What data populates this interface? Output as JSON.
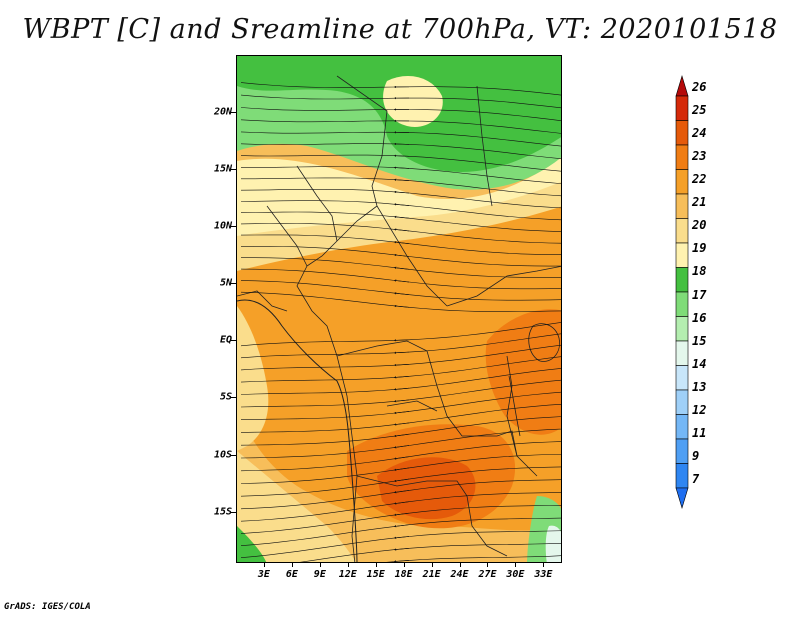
{
  "title": "WBPT [C] and Sreamline at 700hPa, VT: 2020101518",
  "credit": "GrADS: IGES/COLA",
  "map": {
    "lon_range": [
      0,
      35
    ],
    "lat_range": [
      -19.5,
      25
    ],
    "lat_ticks": [
      "20N",
      "15N",
      "10N",
      "5N",
      "EQ",
      "5S",
      "10S",
      "15S"
    ],
    "lat_values": [
      20,
      15,
      10,
      5,
      0,
      -5,
      -10,
      -15
    ],
    "lon_ticks": [
      "3E",
      "6E",
      "9E",
      "12E",
      "15E",
      "18E",
      "21E",
      "24E",
      "27E",
      "30E",
      "33E"
    ],
    "lon_values": [
      3,
      6,
      9,
      12,
      15,
      18,
      21,
      24,
      27,
      30,
      33
    ]
  },
  "colorbar": {
    "levels": [
      "7",
      "9",
      "11",
      "12",
      "13",
      "14",
      "15",
      "16",
      "17",
      "18",
      "19",
      "20",
      "21",
      "22",
      "23",
      "24",
      "25",
      "26"
    ],
    "colors": [
      "#1e6ef0",
      "#2f86f2",
      "#4f9ff4",
      "#74b7f6",
      "#9fd0f8",
      "#c8e6fa",
      "#e4f7ec",
      "#b4eeb0",
      "#7fdc78",
      "#44c040",
      "#fff2b0",
      "#fadd8c",
      "#f7be5a",
      "#f5a028",
      "#f07d14",
      "#e55a0a",
      "#d52a0a",
      "#b40a0a"
    ]
  },
  "field": {
    "colors": {
      "green_dark": "#44c040",
      "green_mid": "#7fdc78",
      "green_light": "#b4eeb0",
      "pale_yellow": "#fff2b0",
      "yellow": "#fadd8c",
      "light_orange": "#f7be5a",
      "orange": "#f5a028",
      "dark_orange": "#f07d14",
      "red_orange": "#e55a0a"
    }
  }
}
